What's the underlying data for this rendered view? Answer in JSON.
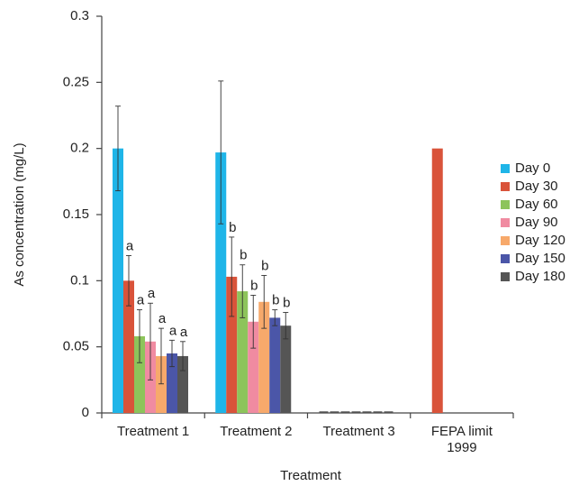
{
  "chart_data": {
    "type": "bar",
    "xlabel": "Treatment",
    "ylabel": "As concentration (mg/L)",
    "categories": [
      "Treatment 1",
      "Treatment 2",
      "Treatment 3",
      "FEPA limit 1999"
    ],
    "ylim": [
      0,
      0.3
    ],
    "yticks": [
      0,
      0.05,
      0.1,
      0.15,
      0.2,
      0.25,
      0.3
    ],
    "grid": false,
    "legend": "right",
    "series": [
      {
        "name": "Day 0",
        "color": "#1fb5e8",
        "values": [
          0.2,
          0.197,
          0,
          null
        ],
        "errors": [
          0.032,
          0.054,
          null,
          null
        ],
        "letters": [
          null,
          null,
          null,
          null
        ]
      },
      {
        "name": "Day 30",
        "color": "#d9533a",
        "values": [
          0.1,
          0.103,
          0,
          0.2
        ],
        "errors": [
          0.019,
          0.03,
          null,
          null
        ],
        "letters": [
          "a",
          "b",
          null,
          null
        ]
      },
      {
        "name": "Day 60",
        "color": "#8dc45b",
        "values": [
          0.058,
          0.092,
          0,
          null
        ],
        "errors": [
          0.02,
          0.02,
          null,
          null
        ],
        "letters": [
          "a",
          "b",
          null,
          null
        ]
      },
      {
        "name": "Day 90",
        "color": "#f08ba1",
        "values": [
          0.054,
          0.069,
          0,
          null
        ],
        "errors": [
          0.029,
          0.02,
          null,
          null
        ],
        "letters": [
          "a",
          "b",
          null,
          null
        ]
      },
      {
        "name": "Day 120",
        "color": "#f7a96b",
        "values": [
          0.043,
          0.084,
          0,
          null
        ],
        "errors": [
          0.021,
          0.02,
          null,
          null
        ],
        "letters": [
          "a",
          "b",
          null,
          null
        ]
      },
      {
        "name": "Day 150",
        "color": "#4b56a8",
        "values": [
          0.045,
          0.072,
          0,
          null
        ],
        "errors": [
          0.01,
          0.006,
          null,
          null
        ],
        "letters": [
          "a",
          "b",
          null,
          null
        ]
      },
      {
        "name": "Day 180",
        "color": "#555555",
        "values": [
          0.043,
          0.066,
          0,
          null
        ],
        "errors": [
          0.011,
          0.01,
          null,
          null
        ],
        "letters": [
          "a",
          "b",
          null,
          null
        ]
      }
    ]
  }
}
